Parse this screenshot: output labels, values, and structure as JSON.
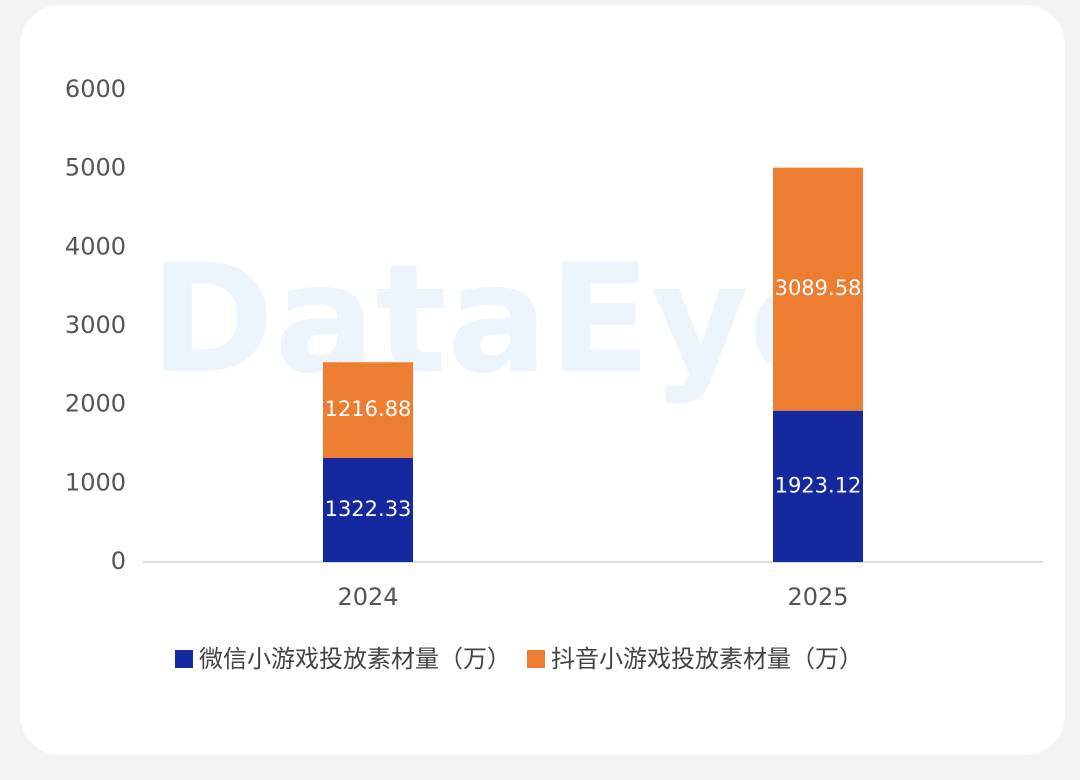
{
  "chart_data": {
    "type": "stacked_bar",
    "watermark": "DataEye",
    "categories": [
      "2024",
      "2025"
    ],
    "series": [
      {
        "name": "微信小游戏投放素材量（万）",
        "color": "#1428a0",
        "values": [
          1322.33,
          1923.12
        ]
      },
      {
        "name": "抖音小游戏投放素材量（万）",
        "color": "#ed7d31",
        "values": [
          1216.88,
          3089.58
        ]
      }
    ],
    "ylim": [
      0,
      6000
    ],
    "yticks": [
      0,
      1000,
      2000,
      3000,
      4000,
      5000,
      6000
    ],
    "grid": false,
    "legend": "bottom"
  }
}
